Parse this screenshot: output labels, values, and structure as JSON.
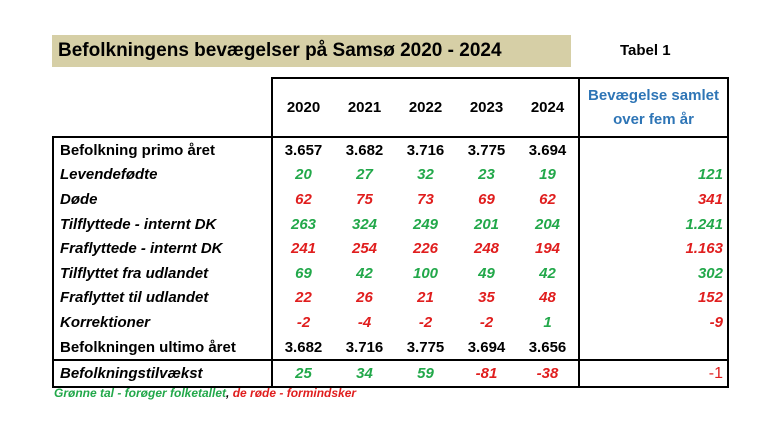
{
  "title": "Befolkningens bevægelser på Samsø 2020 - 2024",
  "tabel_label": "Tabel 1",
  "years": [
    "2020",
    "2021",
    "2022",
    "2023",
    "2024"
  ],
  "total_header_line1": "Bevægelse samlet",
  "total_header_line2": "over fem år",
  "rows": [
    {
      "label": "Befolkning primo året",
      "values": [
        "3.657",
        "3.682",
        "3.716",
        "3.775",
        "3.694"
      ],
      "total": ""
    },
    {
      "label": "Levendefødte",
      "values": [
        "20",
        "27",
        "32",
        "23",
        "19"
      ],
      "total": "121"
    },
    {
      "label": "Døde",
      "values": [
        "62",
        "75",
        "73",
        "69",
        "62"
      ],
      "total": "341"
    },
    {
      "label": "Tilflyttede - internt DK",
      "values": [
        "263",
        "324",
        "249",
        "201",
        "204"
      ],
      "total": "1.241"
    },
    {
      "label": "Fraflyttede - internt DK",
      "values": [
        "241",
        "254",
        "226",
        "248",
        "194"
      ],
      "total": "1.163"
    },
    {
      "label": "Tilflyttet fra udlandet",
      "values": [
        "69",
        "42",
        "100",
        "49",
        "42"
      ],
      "total": "302"
    },
    {
      "label": "Fraflyttet til udlandet",
      "values": [
        "22",
        "26",
        "21",
        "35",
        "48"
      ],
      "total": "152"
    },
    {
      "label": "Korrektioner",
      "values": [
        "-2",
        "-4",
        "-2",
        "-2",
        "1"
      ],
      "total": "-9"
    },
    {
      "label": "Befolkningen ultimo året",
      "values": [
        "3.682",
        "3.716",
        "3.775",
        "3.694",
        "3.656"
      ],
      "total": ""
    },
    {
      "label": "Befolkningstilvækst",
      "values": [
        "25",
        "34",
        "59",
        "-81",
        "-38"
      ],
      "total": "-1"
    }
  ],
  "legend_green": "Grønne tal - forøger folketallet",
  "legend_sep": ", ",
  "legend_red": "de røde - formindsker",
  "colors": {
    "green": "#22a84a",
    "red": "#e01e1e",
    "blue": "#2e75b6",
    "title_bg": "#d6cfa6"
  }
}
